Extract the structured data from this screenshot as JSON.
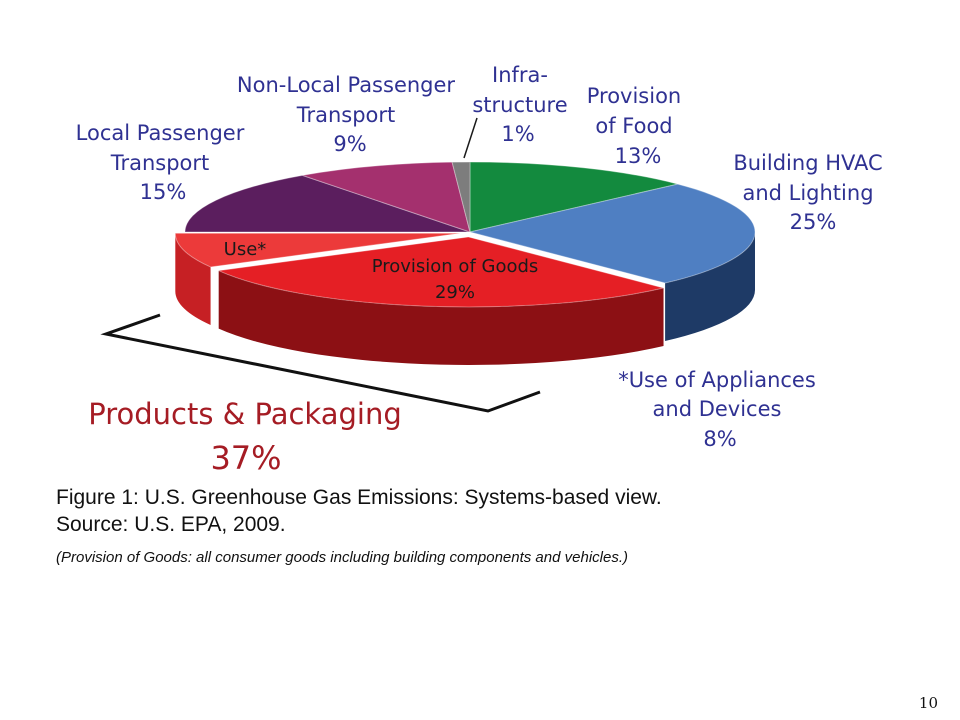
{
  "chart_data": {
    "type": "pie",
    "style": "3d-exploded",
    "slices": [
      {
        "name_lines": [
          "Provision",
          "of Food"
        ],
        "value": 13,
        "label": "13%",
        "color": "#138a3e",
        "side": "#0c5c28"
      },
      {
        "name_lines": [
          "Building HVAC",
          "and Lighting"
        ],
        "value": 25,
        "label": "25%",
        "color": "#4f7fc2",
        "side": "#1e3a66"
      },
      {
        "name_lines": [
          "Provision of Goods"
        ],
        "value": 29,
        "label": "29%",
        "color": "#e51f25",
        "side": "#8c1014"
      },
      {
        "name_lines": [
          "Use*"
        ],
        "value": 8,
        "label": "",
        "color": "#ec3a3a",
        "side": "#c62024"
      },
      {
        "name_lines": [
          "Local Passenger",
          "Transport"
        ],
        "value": 15,
        "label": "15%",
        "color": "#5b1e5e",
        "side": "#3d1240"
      },
      {
        "name_lines": [
          "Non-Local Passenger",
          "Transport"
        ],
        "value": 9,
        "label": "9%",
        "color": "#a4306e",
        "side": "#6e1f4a"
      },
      {
        "name_lines": [
          "Infra-",
          "structure"
        ],
        "value": 1,
        "label": "1%",
        "color": "#7d7d7d",
        "side": "#4e4e4e"
      }
    ],
    "footnote_label": {
      "name_lines": [
        "*Use of Appliances",
        "and Devices"
      ],
      "label": "8%"
    },
    "group": {
      "name": "Products & Packaging",
      "label": "37%"
    }
  },
  "caption": {
    "line1": "Figure 1:  U.S. Greenhouse Gas Emissions: Systems-based view.",
    "line2": "Source: U.S. EPA, 2009.",
    "note": "(Provision of Goods: all consumer goods including building components and vehicles.)"
  },
  "page_number": "10"
}
